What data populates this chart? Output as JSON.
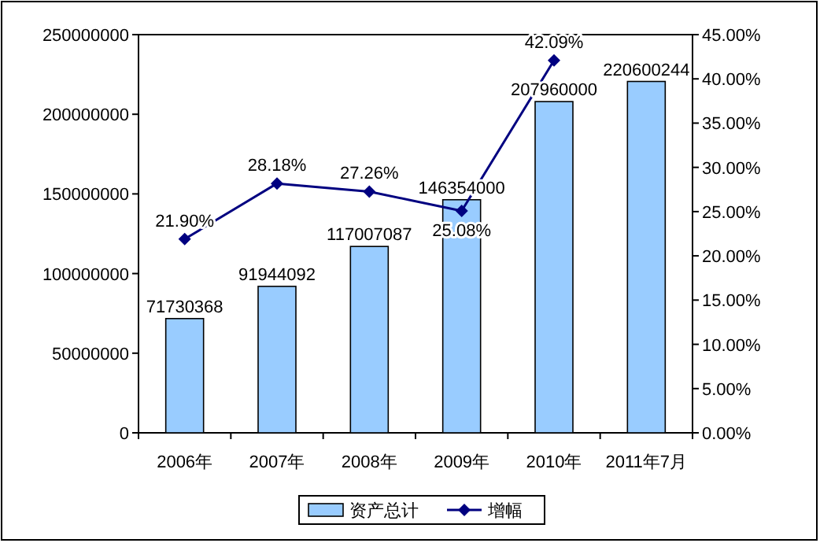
{
  "chart_data": {
    "type": "bar",
    "categories": [
      "2006年",
      "2007年",
      "2008年",
      "2009年",
      "2010年",
      "2011年7月"
    ],
    "series": [
      {
        "name": "资产总计",
        "color": "#99ccff",
        "values": [
          71730368,
          91944092,
          117007087,
          146354000,
          207960000,
          220600244
        ],
        "value_labels": [
          "71730368",
          "91944092",
          "117007087",
          "146354000",
          "207960000",
          "220600244"
        ]
      },
      {
        "name": "增幅",
        "type": "line",
        "axis": "y2",
        "color": "#000080",
        "marker": "diamond",
        "values": [
          21.9,
          28.18,
          27.26,
          25.08,
          42.09,
          null
        ],
        "value_labels": [
          "21.90%",
          "28.18%",
          "27.26%",
          "25.08%",
          "42.09%",
          null
        ]
      }
    ],
    "ylim": [
      0,
      250000000
    ],
    "yticks": [
      0,
      50000000,
      100000000,
      150000000,
      200000000,
      250000000
    ],
    "y2lim": [
      0,
      45
    ],
    "y2ticks": [
      {
        "value": 0,
        "label": "0.00%"
      },
      {
        "value": 5,
        "label": "5.00%"
      },
      {
        "value": 10,
        "label": "10.00%"
      },
      {
        "value": 15,
        "label": "15.00%"
      },
      {
        "value": 20,
        "label": "20.00%"
      },
      {
        "value": 25,
        "label": "25.00%"
      },
      {
        "value": 30,
        "label": "30.00%"
      },
      {
        "value": 35,
        "label": "35.00%"
      },
      {
        "value": 40,
        "label": "40.00%"
      },
      {
        "value": 45,
        "label": "45.00%"
      }
    ],
    "legend": "bottom",
    "grid": false
  }
}
